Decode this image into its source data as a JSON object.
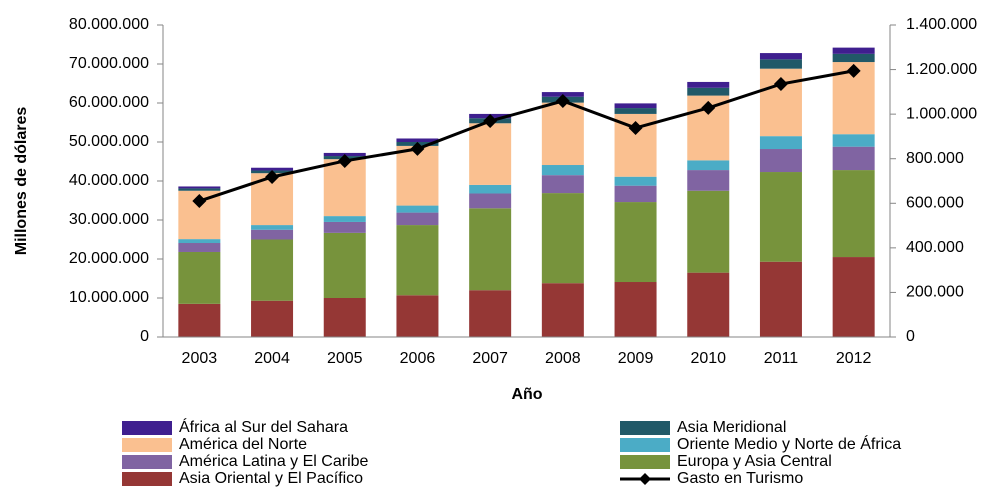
{
  "chart_data": {
    "type": "bar",
    "stacked": true,
    "x_label": "Año",
    "y_label": "Millones de dólares",
    "categories": [
      "2003",
      "2004",
      "2005",
      "2006",
      "2007",
      "2008",
      "2009",
      "2010",
      "2011",
      "2012"
    ],
    "ylim": [
      0,
      80000000
    ],
    "yticks": [
      0,
      {
        "value": 10000000,
        "label": "10.000.000"
      },
      {
        "value": 20000000,
        "label": "20.000.000"
      },
      {
        "value": 30000000,
        "label": "30.000.000"
      },
      {
        "value": 40000000,
        "label": "40.000.000"
      },
      {
        "value": 50000000,
        "label": "50.000.000"
      },
      {
        "value": 60000000,
        "label": "60.000.000"
      },
      {
        "value": 70000000,
        "label": "70.000.000"
      },
      {
        "value": 80000000,
        "label": "80.000.000"
      }
    ],
    "y2lim": [
      0,
      1400000
    ],
    "y2ticks": [
      0,
      {
        "value": 200000,
        "label": "200.000"
      },
      {
        "value": 400000,
        "label": "400.000"
      },
      {
        "value": 600000,
        "label": "600.000"
      },
      {
        "value": 800000,
        "label": "800.000"
      },
      {
        "value": 1000000,
        "label": "1.000.000"
      },
      {
        "value": 1200000,
        "label": "1.200.000"
      },
      {
        "value": 1400000,
        "label": "1.400.000"
      }
    ],
    "legend": "bottom",
    "series": [
      {
        "name": "Asia Oriental y El Pacífico",
        "color": "#953735",
        "values": [
          8500000,
          9300000,
          10000000,
          10700000,
          12000000,
          13800000,
          14100000,
          16500000,
          19300000,
          20500000
        ]
      },
      {
        "name": "Europa y Asia Central",
        "color": "#77933c",
        "values": [
          13300000,
          15700000,
          16700000,
          18000000,
          21000000,
          23100000,
          20500000,
          21000000,
          23000000,
          22300000
        ]
      },
      {
        "name": "América Latina y El Caribe",
        "color": "#8064a2",
        "values": [
          2300000,
          2500000,
          2800000,
          3200000,
          3800000,
          4600000,
          4200000,
          5300000,
          5900000,
          6000000
        ]
      },
      {
        "name": "Oriente Medio y Norte de África",
        "color": "#4bacc6",
        "values": [
          1000000,
          1200000,
          1500000,
          1800000,
          2200000,
          2600000,
          2300000,
          2500000,
          3300000,
          3200000
        ]
      },
      {
        "name": "América del Norte",
        "color": "#fac090",
        "values": [
          12400000,
          13300000,
          14600000,
          15300000,
          15800000,
          16000000,
          16100000,
          16600000,
          17300000,
          18500000
        ]
      },
      {
        "name": "Asia Meridional",
        "color": "#215968",
        "values": [
          600000,
          700000,
          800000,
          1000000,
          1300000,
          1500000,
          1500000,
          2000000,
          2400000,
          2100000
        ]
      },
      {
        "name": "África al Sur del Sahara",
        "color": "#3f1f8f",
        "values": [
          500000,
          700000,
          800000,
          900000,
          1100000,
          1200000,
          1200000,
          1500000,
          1600000,
          1600000
        ]
      },
      {
        "name": "Gasto en Turismo",
        "type": "line",
        "axis": "y2",
        "color": "#000000",
        "values": [
          610000,
          718000,
          790000,
          844000,
          969000,
          1059000,
          938000,
          1028000,
          1135000,
          1194000
        ]
      }
    ]
  }
}
